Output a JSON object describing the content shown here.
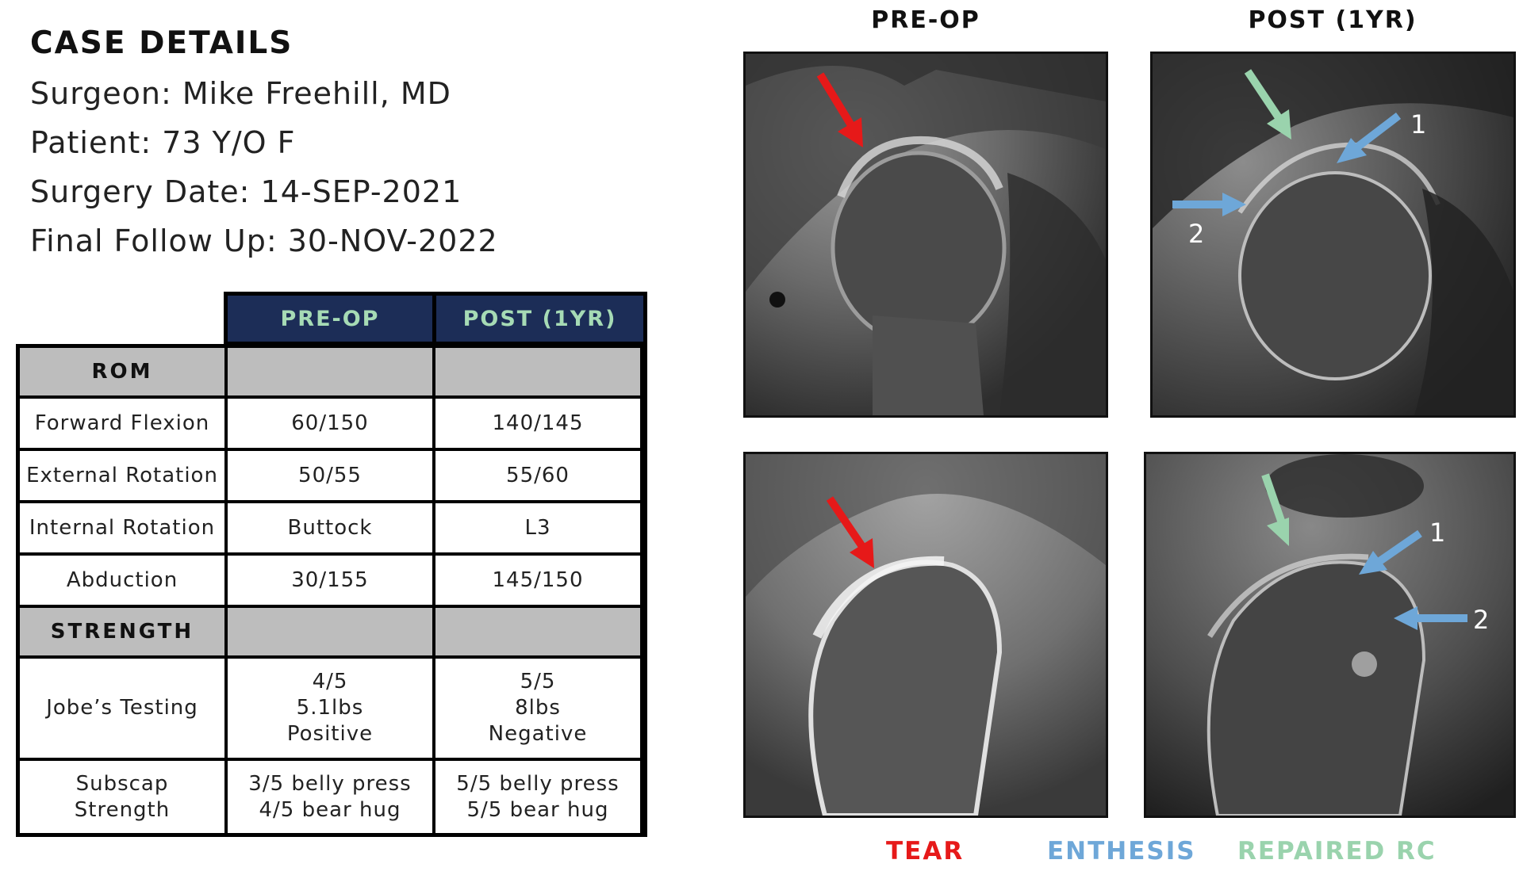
{
  "case": {
    "title": "CASE DETAILS",
    "surgeon": "Surgeon: Mike Freehill, MD",
    "patient": "Patient: 73 Y/O F",
    "surgery_date": "Surgery Date: 14-SEP-2021",
    "follow_up": "Final Follow Up: 30-NOV-2022"
  },
  "table": {
    "col_pre": "PRE-OP",
    "col_post": "POST (1YR)",
    "rom_label": "ROM",
    "strength_label": "STRENGTH",
    "rows": {
      "ff": {
        "label": "Forward Flexion",
        "pre": "60/150",
        "post": "140/145"
      },
      "er": {
        "label": "External Rotation",
        "pre": "50/55",
        "post": "55/60"
      },
      "ir": {
        "label": "Internal Rotation",
        "pre": "Buttock",
        "post": "L3"
      },
      "abd": {
        "label": "Abduction",
        "pre": "30/155",
        "post": "145/150"
      },
      "jobe": {
        "label": "Jobe’s Testing",
        "pre": "4/5\n5.1lbs\nPositive",
        "post": "5/5\n8lbs\nNegative"
      },
      "subscap": {
        "label": "Subscap\nStrength",
        "pre": "3/5 belly press\n4/5 bear hug",
        "post": "5/5 belly press\n5/5 bear hug"
      }
    }
  },
  "images": {
    "pre_heading": "PRE-OP",
    "post_heading": "POST (1YR)",
    "marker_1": "1",
    "marker_2": "2"
  },
  "legend": {
    "tear": "TEAR",
    "enthesis": "ENTHESIS",
    "repaired": "REPAIRED RC"
  },
  "colors": {
    "tear": "#e61919",
    "enthesis": "#6ea7d8",
    "repaired": "#9ad3ad",
    "header_bg": "#1c2d57"
  }
}
